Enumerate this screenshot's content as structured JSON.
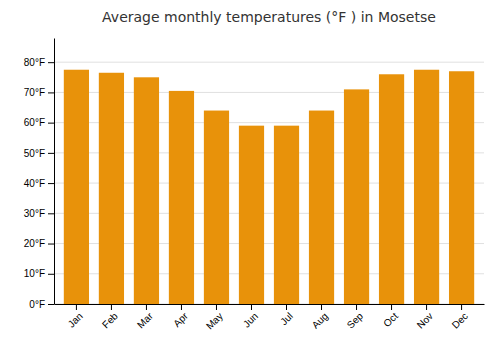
{
  "chart_data": {
    "type": "bar",
    "title": "Average monthly temperatures (°F ) in Mosetse",
    "categories": [
      "Jan",
      "Feb",
      "Mar",
      "Apr",
      "May",
      "Jun",
      "Jul",
      "Aug",
      "Sep",
      "Oct",
      "Nov",
      "Dec"
    ],
    "values": [
      77.5,
      76.5,
      75.0,
      70.5,
      64.0,
      59.0,
      59.0,
      64.0,
      71.0,
      76.0,
      77.5,
      77.0
    ],
    "color": "#E8920A",
    "ylim": [
      0,
      88
    ],
    "yticks": [
      {
        "value": 0,
        "label": "0°F"
      },
      {
        "value": 10,
        "label": "10°F"
      },
      {
        "value": 20,
        "label": "20°F"
      },
      {
        "value": 30,
        "label": "30°F"
      },
      {
        "value": 40,
        "label": "40°F"
      },
      {
        "value": 50,
        "label": "50°F"
      },
      {
        "value": 60,
        "label": "60°F"
      },
      {
        "value": 70,
        "label": "70°F"
      },
      {
        "value": 80,
        "label": "80°F"
      }
    ],
    "grid": true
  }
}
